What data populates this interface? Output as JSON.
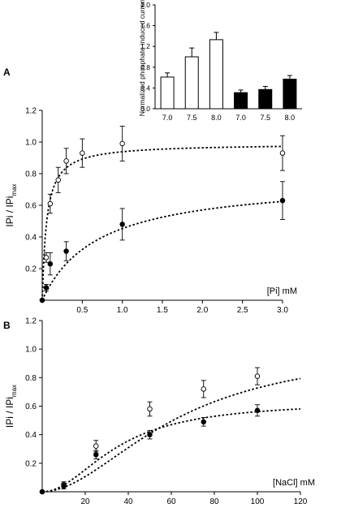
{
  "chart_data": [
    {
      "panel": "inset",
      "type": "bar",
      "ylabel": "Normalized phosphate-induced current",
      "ylim": [
        0,
        2.0
      ],
      "yticks": [
        "0.0",
        "0.4",
        "0.8",
        "1.2",
        "1.6",
        "2.0"
      ],
      "categories": [
        "7.0",
        "7.5",
        "8.0",
        "7.0",
        "7.5",
        "8.0"
      ],
      "values": [
        0.61,
        1.0,
        1.33,
        0.31,
        0.37,
        0.57
      ],
      "errors": [
        0.08,
        0.17,
        0.14,
        0.05,
        0.06,
        0.07
      ],
      "bar_fill": [
        "white",
        "white",
        "white",
        "black",
        "black",
        "black"
      ]
    },
    {
      "panel": "A",
      "type": "scatter",
      "panel_label": "A",
      "xlabel": "[Pi] mM",
      "ylabel_main": "IPi / IPi",
      "ylabel_sub": "max",
      "xlim": [
        0,
        3.0
      ],
      "ylim": [
        0,
        1.2
      ],
      "xticks": [
        "0.5",
        "1.0",
        "1.5",
        "2.0",
        "2.5",
        "3.0"
      ],
      "yticks": [
        "0.2",
        "0.4",
        "0.6",
        "0.8",
        "1.0",
        "1.2"
      ],
      "series": [
        {
          "marker": "open",
          "fit": {
            "vmax": 0.99,
            "km": 0.055
          },
          "points": [
            [
              0,
              0.0
            ],
            [
              0.05,
              0.27
            ],
            [
              0.1,
              0.61
            ],
            [
              0.2,
              0.76
            ],
            [
              0.3,
              0.88
            ],
            [
              0.5,
              0.93
            ],
            [
              1.0,
              0.99
            ],
            [
              3.0,
              0.93
            ]
          ],
          "errors": [
            0,
            0.03,
            0.06,
            0.08,
            0.08,
            0.09,
            0.11,
            0.11
          ]
        },
        {
          "marker": "filled",
          "fit": {
            "vmax": 0.77,
            "km": 0.7
          },
          "points": [
            [
              0,
              0.0
            ],
            [
              0.05,
              0.08
            ],
            [
              0.1,
              0.23
            ],
            [
              0.3,
              0.31
            ],
            [
              1.0,
              0.48
            ],
            [
              3.0,
              0.63
            ]
          ],
          "errors": [
            0,
            0.02,
            0.07,
            0.06,
            0.1,
            0.12
          ]
        }
      ]
    },
    {
      "panel": "B",
      "type": "scatter",
      "panel_label": "B",
      "xlabel": "[NaCl] mM",
      "ylabel_main": "IPi / IPi",
      "ylabel_sub": "max",
      "xlim": [
        0,
        120
      ],
      "ylim": [
        0,
        1.2
      ],
      "xticks": [
        "20",
        "40",
        "60",
        "80",
        "100",
        "120"
      ],
      "yticks": [
        "0.2",
        "0.4",
        "0.6",
        "0.8",
        "1.0",
        "1.2"
      ],
      "series": [
        {
          "marker": "open",
          "fit": {
            "vmax": 1.02,
            "k": 62,
            "n": 1.9
          },
          "points": [
            [
              0,
              0.0
            ],
            [
              10,
              0.05
            ],
            [
              25,
              0.32
            ],
            [
              50,
              0.58
            ],
            [
              75,
              0.72
            ],
            [
              100,
              0.81
            ]
          ],
          "errors": [
            0,
            0.02,
            0.04,
            0.05,
            0.06,
            0.06
          ]
        },
        {
          "marker": "filled",
          "fit": {
            "vmax": 0.63,
            "k": 35,
            "n": 2.0
          },
          "points": [
            [
              0,
              0.0
            ],
            [
              10,
              0.04
            ],
            [
              25,
              0.26
            ],
            [
              50,
              0.4
            ],
            [
              75,
              0.49
            ],
            [
              100,
              0.57
            ]
          ],
          "errors": [
            0,
            0.02,
            0.03,
            0.03,
            0.03,
            0.04
          ]
        }
      ]
    }
  ]
}
